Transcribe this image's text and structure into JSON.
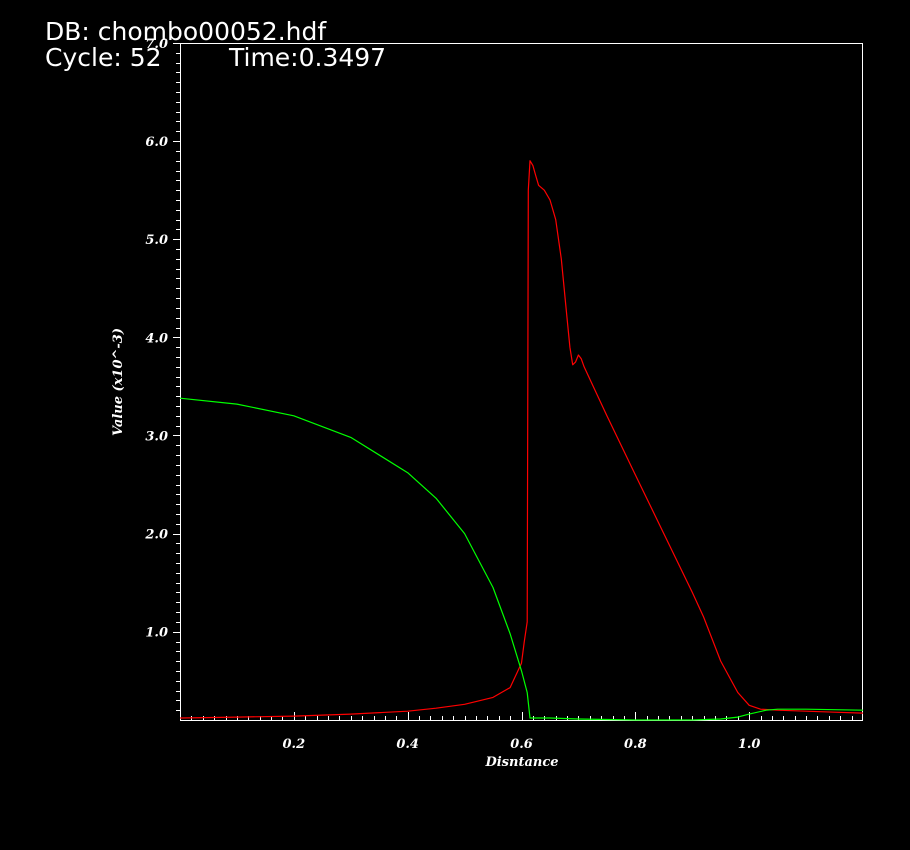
{
  "header": {
    "db_label": "DB: chombo00052.hdf",
    "cycle_label": "Cycle: 52",
    "time_label": "Time:0.3497"
  },
  "colors": {
    "background": "#000000",
    "axes": "#ffffff",
    "red_curve": "#ff0000",
    "green_curve": "#00ff00"
  },
  "chart_data": {
    "type": "line",
    "title": "",
    "xlabel": "Disntance",
    "ylabel": "Value (x10^-3)",
    "xlim": [
      0.0,
      1.2
    ],
    "ylim": [
      0.1,
      7.0
    ],
    "x_ticks": [
      0.2,
      0.4,
      0.6,
      0.8,
      1.0
    ],
    "x_tick_labels": [
      "0.2",
      "0.4",
      "0.6",
      "0.8",
      "1.0"
    ],
    "y_ticks": [
      1.0,
      2.0,
      3.0,
      4.0,
      5.0,
      6.0,
      7.0
    ],
    "y_tick_labels": [
      "1.0",
      "2.0",
      "3.0",
      "4.0",
      "5.0",
      "6.0",
      "7.0"
    ],
    "grid": false,
    "series": [
      {
        "color": "#ff0000",
        "x": [
          0.0,
          0.1,
          0.2,
          0.3,
          0.4,
          0.45,
          0.5,
          0.55,
          0.58,
          0.6,
          0.605,
          0.61,
          0.612,
          0.615,
          0.62,
          0.625,
          0.63,
          0.64,
          0.65,
          0.66,
          0.67,
          0.68,
          0.685,
          0.69,
          0.695,
          0.7,
          0.705,
          0.71,
          0.75,
          0.8,
          0.85,
          0.9,
          0.92,
          0.95,
          0.98,
          1.0,
          1.02,
          1.05,
          1.1,
          1.15,
          1.2
        ],
        "y": [
          0.12,
          0.13,
          0.14,
          0.16,
          0.19,
          0.22,
          0.26,
          0.33,
          0.43,
          0.68,
          0.9,
          1.1,
          5.5,
          5.8,
          5.75,
          5.65,
          5.55,
          5.5,
          5.4,
          5.2,
          4.8,
          4.2,
          3.9,
          3.72,
          3.75,
          3.82,
          3.78,
          3.7,
          3.2,
          2.6,
          2.0,
          1.4,
          1.15,
          0.7,
          0.38,
          0.25,
          0.21,
          0.2,
          0.19,
          0.18,
          0.17
        ]
      },
      {
        "color": "#00ff00",
        "x": [
          0.0,
          0.1,
          0.2,
          0.3,
          0.4,
          0.45,
          0.5,
          0.55,
          0.58,
          0.6,
          0.61,
          0.615,
          0.62,
          0.65,
          0.7,
          0.8,
          0.9,
          0.95,
          0.98,
          1.0,
          1.03,
          1.05,
          1.1,
          1.2
        ],
        "y": [
          3.38,
          3.32,
          3.2,
          2.98,
          2.62,
          2.36,
          2.0,
          1.45,
          0.98,
          0.6,
          0.38,
          0.12,
          0.12,
          0.12,
          0.11,
          0.1,
          0.1,
          0.11,
          0.13,
          0.16,
          0.2,
          0.21,
          0.21,
          0.2
        ]
      }
    ]
  }
}
